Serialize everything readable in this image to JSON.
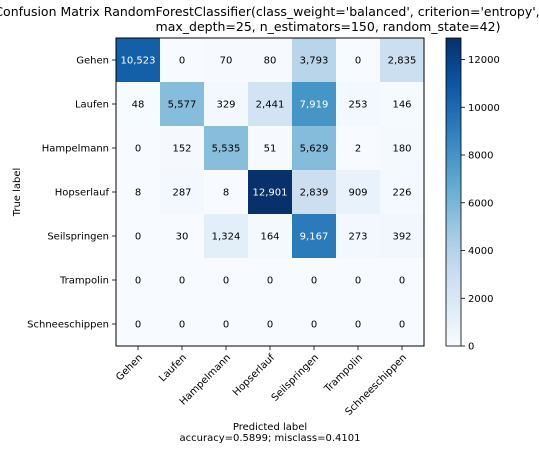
{
  "chart_data": {
    "type": "heatmap",
    "title_line1": "Confusion Matrix RandomForestClassifier(class_weight='balanced', criterion='entropy',",
    "title_line2": "max_depth=25, n_estimators=150, random_state=42)",
    "xlabel": "Predicted label",
    "xlabel_sub": "accuracy=0.5899; misclass=0.4101",
    "ylabel": "True label",
    "rows": [
      "Gehen",
      "Laufen",
      "Hampelmann",
      "Hopserlauf",
      "Seilspringen",
      "Trampolin",
      "Schneeschippen"
    ],
    "columns": [
      "Gehen",
      "Laufen",
      "Hampelmann",
      "Hopserlauf",
      "Seilspringen",
      "Trampolin",
      "Schneeschippen"
    ],
    "values": [
      [
        10523,
        0,
        70,
        80,
        3793,
        0,
        2835
      ],
      [
        48,
        5577,
        329,
        2441,
        7919,
        253,
        146
      ],
      [
        0,
        152,
        5535,
        51,
        5629,
        2,
        180
      ],
      [
        8,
        287,
        8,
        12901,
        2839,
        909,
        226
      ],
      [
        0,
        30,
        1324,
        164,
        9167,
        273,
        392
      ],
      [
        0,
        0,
        0,
        0,
        0,
        0,
        0
      ],
      [
        0,
        0,
        0,
        0,
        0,
        0,
        0
      ]
    ],
    "vmin": 0,
    "vmax": 12901,
    "colormap": "Blues",
    "colorbar_ticks": [
      0,
      2000,
      4000,
      6000,
      8000,
      10000,
      12000
    ],
    "text_light": "#ffffff",
    "text_dark": "#000000"
  }
}
